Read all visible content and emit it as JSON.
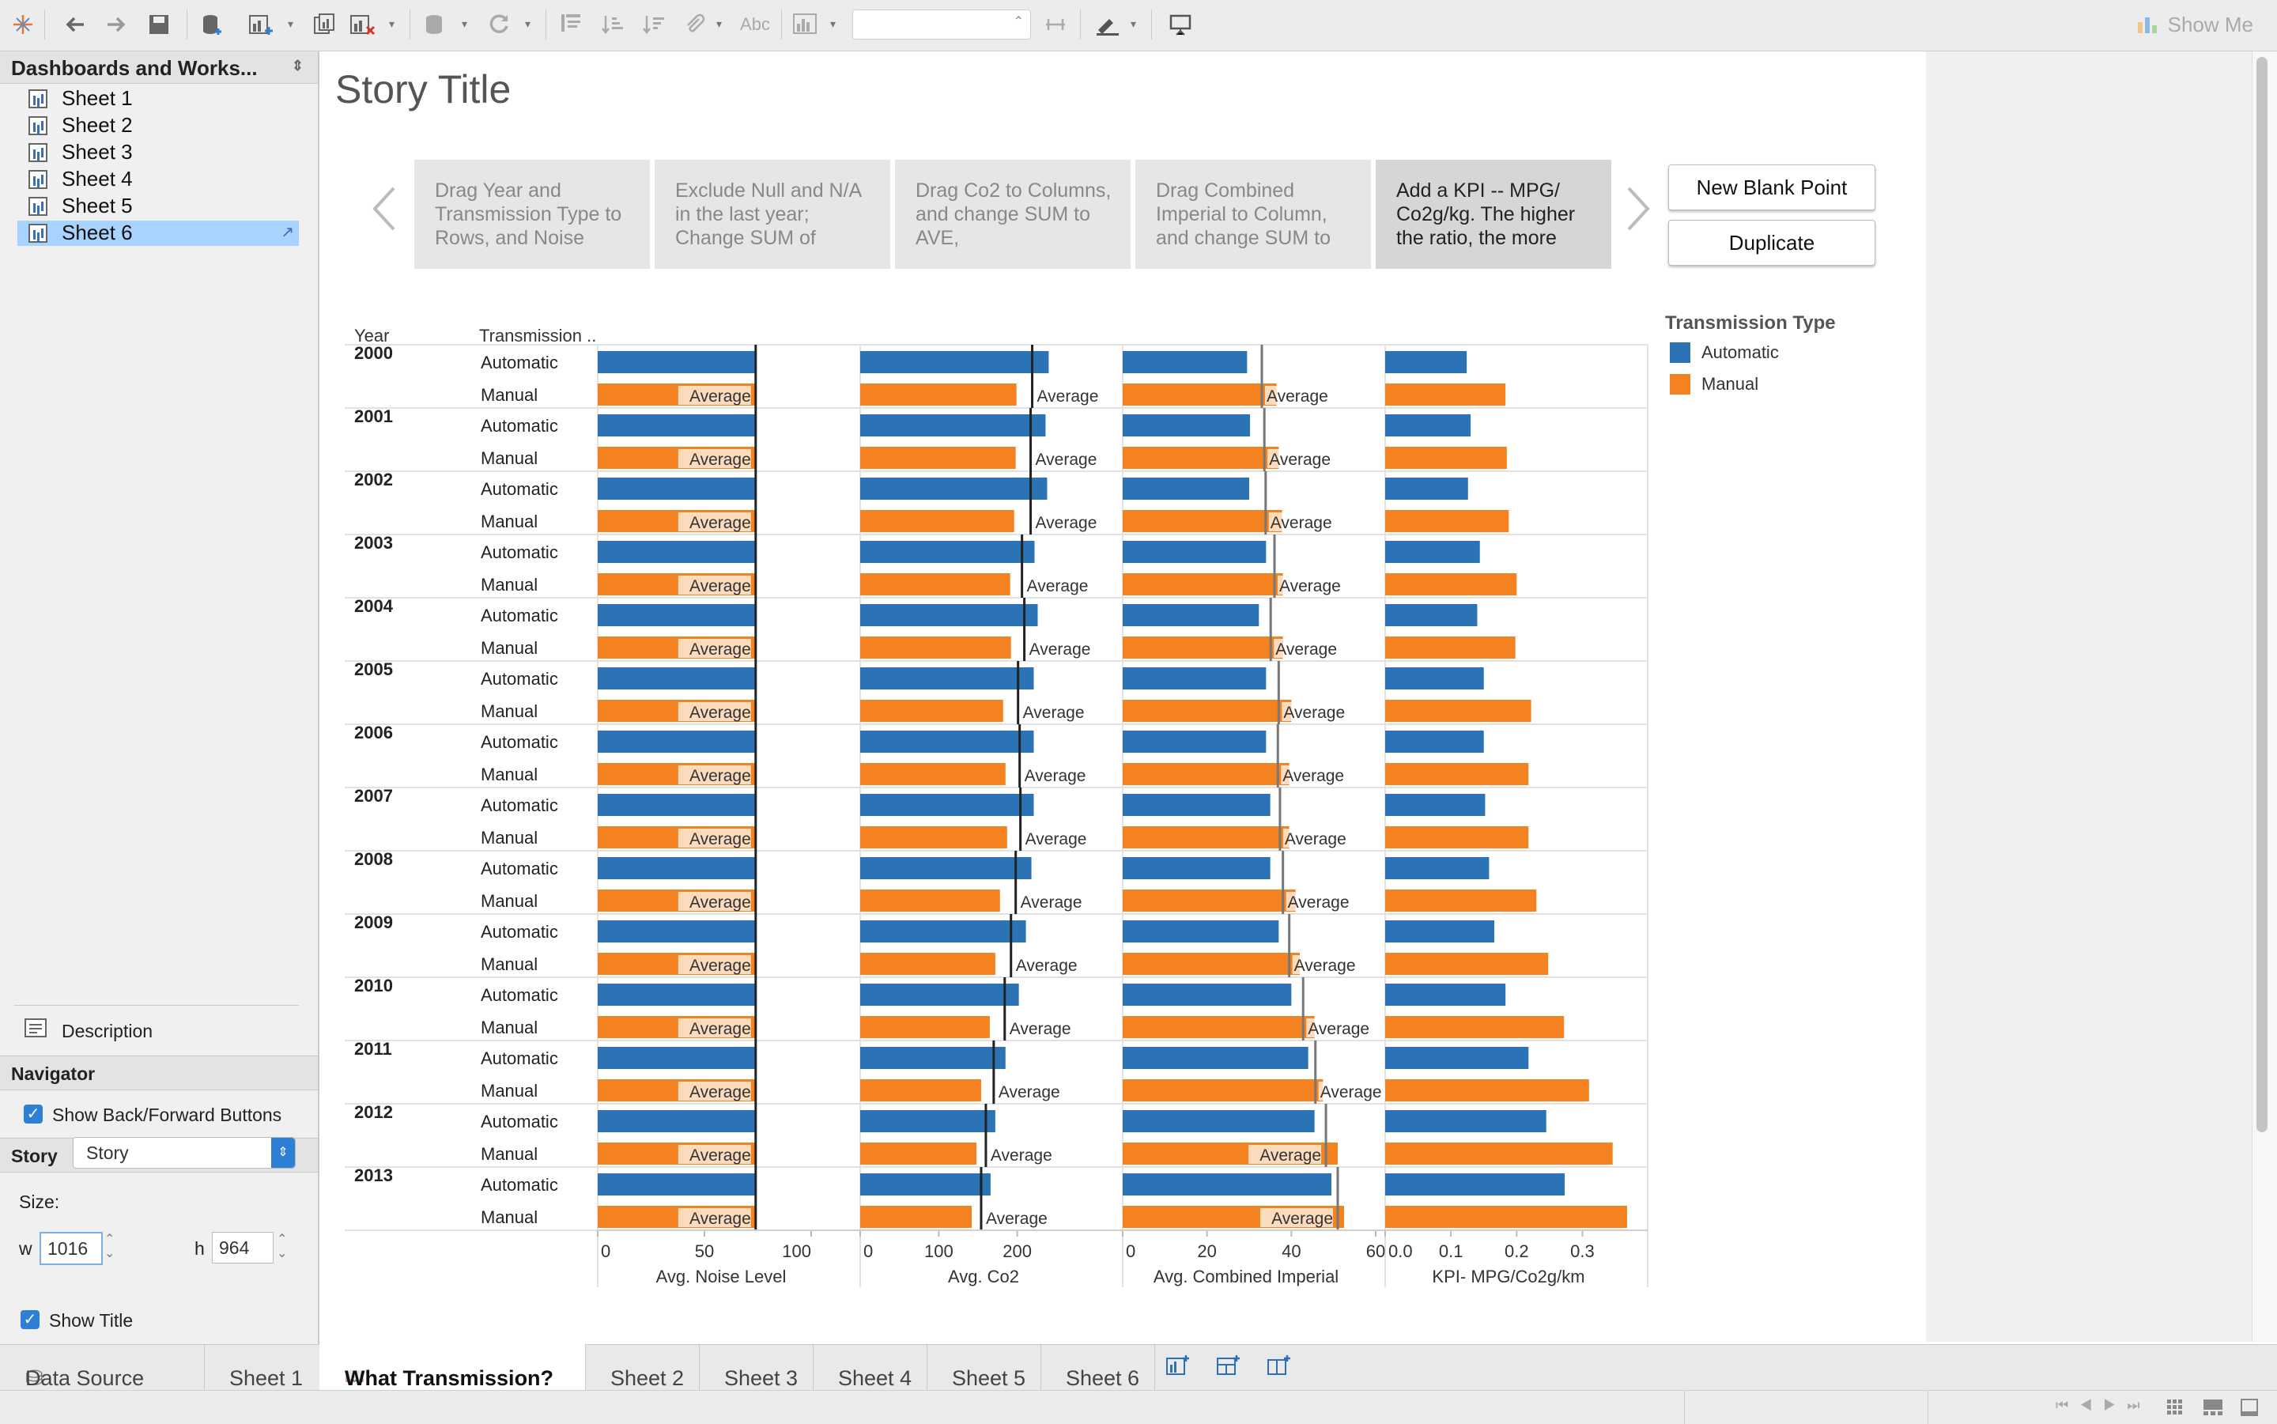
{
  "toolbar": {
    "show_me_label": "Show Me",
    "text_tool_label": "Abc",
    "icons": [
      "tableau-logo-icon",
      "undo-icon",
      "redo-icon",
      "save-icon",
      "new-data-source-icon",
      "new-worksheet-icon",
      "duplicate-sheet-icon",
      "clear-sheet-icon",
      "pause-updates-icon",
      "refresh-icon",
      "swap-icon",
      "sort-ascending-icon",
      "sort-descending-icon",
      "attach-icon",
      "text-icon",
      "chart-type-icon",
      "fit-icon",
      "pin-icon",
      "highlight-icon",
      "presentation-icon"
    ]
  },
  "left_panel": {
    "header": "Dashboards and Works...",
    "sheets": [
      {
        "label": "Sheet 1",
        "selected": false
      },
      {
        "label": "Sheet 2",
        "selected": false
      },
      {
        "label": "Sheet 3",
        "selected": false
      },
      {
        "label": "Sheet 4",
        "selected": false
      },
      {
        "label": "Sheet 5",
        "selected": false
      },
      {
        "label": "Sheet 6",
        "selected": true
      }
    ],
    "description_label": "Description",
    "navigator_header": "Navigator",
    "show_buttons_label": "Show Back/Forward Buttons",
    "story_header": "Story",
    "size_label": "Size:",
    "size_value": "Story",
    "w_label": "w",
    "w_value": "1016",
    "h_label": "h",
    "h_value": "964",
    "show_title_label": "Show Title"
  },
  "story": {
    "title": "Story Title",
    "points": [
      "Drag Year and Transmission Type to Rows, and Noise",
      "Exclude Null and N/A in the last year; Change SUM of",
      "Drag Co2 to Columns, and change SUM to AVE,",
      "Drag Combined Imperial to Column, and change SUM to",
      "Add a KPI -- MPG/ Co2g/kg. The higher the ratio, the more"
    ],
    "active_point": 4,
    "new_blank_point_label": "New Blank Point",
    "duplicate_label": "Duplicate"
  },
  "legend": {
    "title": "Transmission Type",
    "items": [
      {
        "label": "Automatic",
        "color": "#2b73b5"
      },
      {
        "label": "Manual",
        "color": "#f58220"
      }
    ]
  },
  "chart_data": {
    "type": "bar",
    "row_headers": {
      "year": "Year",
      "transmission": "Transmission .."
    },
    "years": [
      "2000",
      "2001",
      "2002",
      "2003",
      "2004",
      "2005",
      "2006",
      "2007",
      "2008",
      "2009",
      "2010",
      "2011",
      "2012",
      "2013"
    ],
    "transmissions": [
      "Automatic",
      "Manual"
    ],
    "average_label": "Average",
    "colors": {
      "Automatic": "#2b73b5",
      "Manual": "#f58220"
    },
    "panes": [
      {
        "measure": "Avg. Noise Level",
        "ticks": [
          "0",
          "50",
          "100"
        ],
        "xlim": [
          0,
          100
        ],
        "automatic": [
          74,
          74,
          74,
          74,
          74,
          74,
          74,
          74,
          74,
          74,
          74,
          74,
          74,
          74
        ],
        "manual": [
          74,
          74,
          74,
          74,
          74,
          74,
          74,
          74,
          74,
          74,
          74,
          74,
          74,
          74
        ],
        "average_lines": [
          74,
          74,
          74,
          74,
          74,
          74,
          74,
          74,
          74,
          74,
          74,
          74,
          74,
          74
        ]
      },
      {
        "measure": "Avg. Co2",
        "ticks": [
          "0",
          "100",
          "200"
        ],
        "xlim": [
          0,
          300
        ],
        "automatic": [
          240,
          236,
          238,
          222,
          226,
          221,
          221,
          221,
          218,
          211,
          202,
          185,
          172,
          166
        ],
        "manual": [
          199,
          198,
          196,
          191,
          192,
          182,
          185,
          187,
          178,
          172,
          165,
          154,
          148,
          142
        ],
        "average_lines": [
          219,
          217,
          217,
          206,
          209,
          201,
          203,
          204,
          198,
          192,
          184,
          170,
          160,
          154
        ]
      },
      {
        "measure": "Avg. Combined Imperial",
        "ticks": [
          "0",
          "20",
          "40",
          "60"
        ],
        "xlim": [
          0,
          60
        ],
        "automatic": [
          29.5,
          30.2,
          30.0,
          34.0,
          32.3,
          34.0,
          34.0,
          35.0,
          35.0,
          37.0,
          40.0,
          44.0,
          45.5,
          49.5
        ],
        "manual": [
          36.5,
          37.0,
          37.8,
          38.0,
          38.0,
          40.0,
          39.5,
          39.5,
          41.0,
          42.0,
          45.5,
          47.5,
          51.0,
          52.5
        ],
        "average_lines": [
          33.0,
          33.6,
          33.9,
          36.0,
          35.1,
          37.0,
          36.8,
          37.3,
          38.0,
          39.5,
          42.8,
          45.7,
          48.2,
          51.0
        ]
      },
      {
        "measure": "KPI- MPG/Co2g/km",
        "ticks": [
          "0.0",
          "0.1",
          "0.2",
          "0.3"
        ],
        "xlim": [
          0,
          0.38
        ],
        "automatic": [
          0.124,
          0.13,
          0.126,
          0.144,
          0.14,
          0.15,
          0.15,
          0.152,
          0.158,
          0.166,
          0.183,
          0.218,
          0.245,
          0.273
        ],
        "manual": [
          0.183,
          0.185,
          0.188,
          0.2,
          0.198,
          0.222,
          0.218,
          0.218,
          0.23,
          0.248,
          0.272,
          0.31,
          0.346,
          0.368
        ],
        "average_lines": null
      }
    ]
  },
  "bottom_tabs": [
    {
      "label": "Data Source",
      "icon": "database-icon",
      "active": false
    },
    {
      "label": "Sheet 1",
      "active": false
    },
    {
      "label": "What Transmission?",
      "icon": "story-icon",
      "active": true
    },
    {
      "label": "Sheet 2",
      "active": false
    },
    {
      "label": "Sheet 3",
      "active": false
    },
    {
      "label": "Sheet 4",
      "active": false
    },
    {
      "label": "Sheet 5",
      "active": false
    },
    {
      "label": "Sheet 6",
      "active": false
    }
  ]
}
